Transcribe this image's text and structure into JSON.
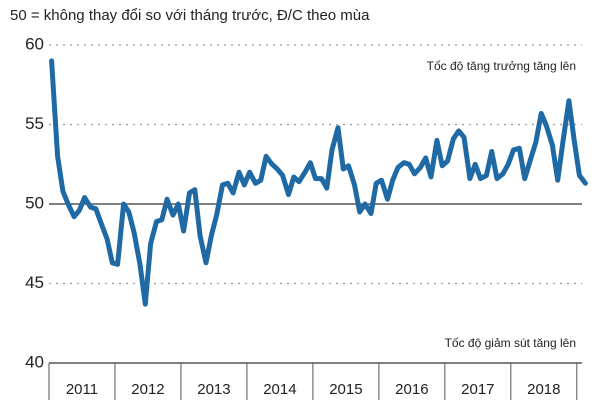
{
  "chart_data": {
    "type": "line",
    "subtitle": "50 = không thay đổi so với tháng trước, Đ/C theo mùa",
    "annotations": [
      "Tốc độ tăng trưởng tăng lên",
      "Tốc độ giảm sút tăng lên"
    ],
    "color": "#1f6aa5",
    "x": [
      2011.04,
      2011.13,
      2011.21,
      2011.29,
      2011.38,
      2011.46,
      2011.54,
      2011.63,
      2011.71,
      2011.79,
      2011.88,
      2011.96,
      2012.04,
      2012.13,
      2012.21,
      2012.29,
      2012.38,
      2012.46,
      2012.54,
      2012.63,
      2012.71,
      2012.79,
      2012.88,
      2012.96,
      2013.04,
      2013.13,
      2013.21,
      2013.29,
      2013.38,
      2013.46,
      2013.54,
      2013.63,
      2013.71,
      2013.79,
      2013.88,
      2013.96,
      2014.04,
      2014.13,
      2014.21,
      2014.29,
      2014.38,
      2014.46,
      2014.54,
      2014.63,
      2014.71,
      2014.79,
      2014.88,
      2014.96,
      2015.04,
      2015.13,
      2015.21,
      2015.29,
      2015.38,
      2015.46,
      2015.54,
      2015.63,
      2015.71,
      2015.79,
      2015.88,
      2015.96,
      2016.04,
      2016.13,
      2016.21,
      2016.29,
      2016.38,
      2016.46,
      2016.54,
      2016.63,
      2016.71,
      2016.79,
      2016.88,
      2016.96,
      2017.04,
      2017.13,
      2017.21,
      2017.29,
      2017.38,
      2017.46,
      2017.54,
      2017.63,
      2017.71,
      2017.79,
      2017.88,
      2017.96,
      2018.04,
      2018.13,
      2018.21,
      2018.29,
      2018.38,
      2018.46,
      2018.54,
      2018.63,
      2018.71,
      2018.79,
      2018.88,
      2018.96,
      2019.04,
      2019.13
    ],
    "values": [
      59,
      53,
      50.8,
      50,
      49.2,
      49.6,
      50.4,
      49.8,
      49.7,
      48.8,
      47.8,
      46.3,
      46.2,
      50,
      49.5,
      48.2,
      46.2,
      43.7,
      47.5,
      48.9,
      49,
      50.3,
      49.3,
      50,
      48.3,
      50.7,
      50.9,
      48,
      46.3,
      48,
      49.3,
      51.2,
      51.3,
      50.7,
      52,
      51.2,
      52,
      51.3,
      51.5,
      53,
      52.5,
      52.2,
      51.8,
      50.6,
      51.7,
      51.4,
      52,
      52.6,
      51.6,
      51.6,
      51,
      53.4,
      54.8,
      52.2,
      52.4,
      51.2,
      49.5,
      50,
      49.4,
      51.3,
      51.5,
      50.3,
      51.5,
      52.3,
      52.6,
      52.5,
      51.9,
      52.3,
      52.9,
      51.7,
      54,
      52.4,
      52.7,
      54.1,
      54.6,
      54.2,
      51.6,
      52.5,
      51.6,
      51.8,
      53.3,
      51.6,
      51.9,
      52.5,
      53.4,
      53.5,
      51.6,
      52.7,
      53.9,
      55.7,
      54.9,
      53.7,
      51.5,
      53.9,
      56.5,
      54,
      51.8,
      51.3
    ],
    "xlim": [
      2011,
      2019.2
    ],
    "xticks": [
      2011,
      2012,
      2013,
      2014,
      2015,
      2016,
      2017,
      2018,
      2019
    ],
    "year_labels": [
      "2011",
      "2012",
      "2013",
      "2014",
      "2015",
      "2016",
      "2017",
      "2018"
    ],
    "ylim": [
      40,
      60
    ],
    "yticks": [
      40,
      45,
      50,
      55,
      60
    ],
    "baseline": 50,
    "grid": true
  }
}
